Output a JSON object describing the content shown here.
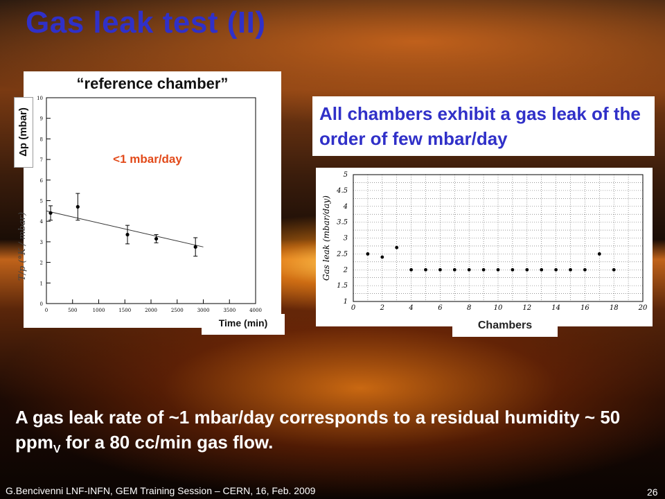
{
  "slide": {
    "title": "Gas leak test (II)",
    "statement": "All chambers exhibit a gas leak of the order of few mbar/day",
    "bottom_text_1": "A gas leak rate of ~1 mbar/day corresponds to a residual humidity ~ 50 ppm",
    "bottom_sub": "V",
    "bottom_text_2": " for a 80 cc/min gas flow.",
    "footer": "G.Bencivenni LNF-INFN, GEM Training Session – CERN,  16, Feb.  2009",
    "page_number": "26"
  },
  "chart_data": [
    {
      "type": "scatter",
      "title": "“reference chamber”",
      "xlabel": "Time (min)",
      "ylabel": "Δp (mbar)",
      "ylabel_underlay": "T/p (°K / mbar)",
      "annotation": "<1 mbar/day",
      "annotation_color": "#e24a1a",
      "xlim": [
        0,
        4000
      ],
      "ylim": [
        0,
        10
      ],
      "x_ticks": [
        0,
        500,
        1000,
        1500,
        2000,
        2500,
        3000,
        3500,
        4000
      ],
      "y_ticks": [
        0,
        1,
        2,
        3,
        4,
        5,
        6,
        7,
        8,
        9,
        10
      ],
      "points": [
        {
          "x": 80,
          "y": 4.4,
          "err": 0.35
        },
        {
          "x": 600,
          "y": 4.7,
          "err": 0.65
        },
        {
          "x": 1550,
          "y": 3.35,
          "err": 0.45
        },
        {
          "x": 2100,
          "y": 3.15,
          "err": 0.2
        },
        {
          "x": 2850,
          "y": 2.75,
          "err": 0.45
        }
      ],
      "fit_line": {
        "x": [
          0,
          3000
        ],
        "y": [
          4.5,
          2.75
        ]
      },
      "grid": false
    },
    {
      "type": "scatter",
      "xlabel": "Chambers",
      "ylabel": "Gas leak (mbar/day)",
      "xlim": [
        0,
        20
      ],
      "ylim": [
        1,
        5
      ],
      "x_ticks": [
        0,
        2,
        4,
        6,
        8,
        10,
        12,
        14,
        16,
        18,
        20
      ],
      "y_ticks": [
        1,
        1.5,
        2,
        2.5,
        3,
        3.5,
        4,
        4.5,
        5
      ],
      "x": [
        1,
        2,
        3,
        4,
        5,
        6,
        7,
        8,
        9,
        10,
        11,
        12,
        13,
        14,
        15,
        16,
        17,
        18
      ],
      "y": [
        2.5,
        2.4,
        2.7,
        2.0,
        2.0,
        2.0,
        2.0,
        2.0,
        2.0,
        2.0,
        2.0,
        2.0,
        2.0,
        2.0,
        2.0,
        2.0,
        2.5,
        2.0
      ],
      "grid": true
    }
  ]
}
